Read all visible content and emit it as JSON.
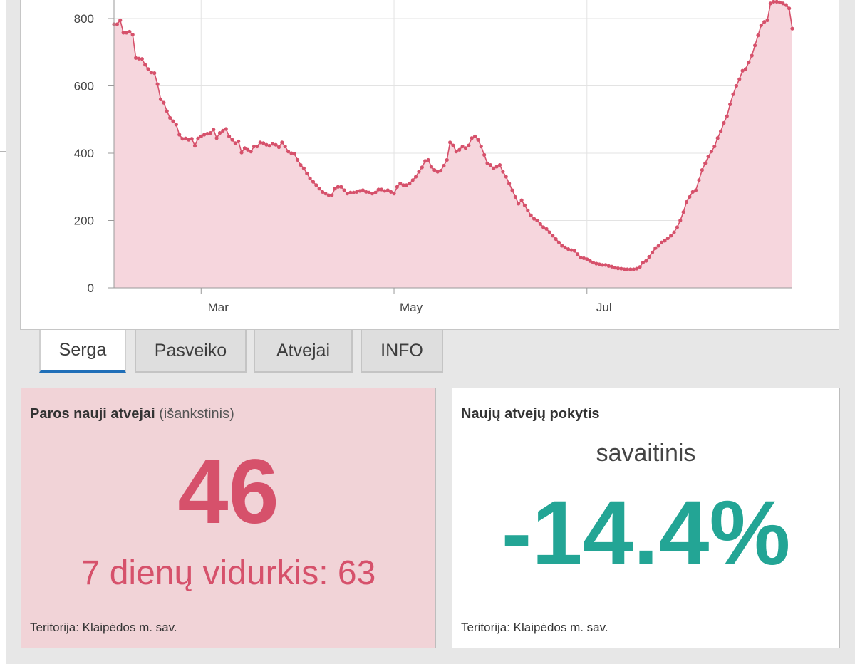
{
  "colors": {
    "chart_line": "#d6516b",
    "chart_fill": "#f6d6dd",
    "left_card_bg": "#f1d3d7",
    "left_card_text": "#d6516b",
    "right_card_value": "#23a595",
    "active_tab_underline": "#1f6fb8"
  },
  "chart_data": {
    "type": "area",
    "x_tick_labels": [
      "Mar",
      "May",
      "Jul"
    ],
    "y_ticks": [
      0,
      200,
      400,
      600,
      800
    ],
    "ylim": [
      0,
      850
    ],
    "grid": true,
    "legend": "none",
    "series": [
      {
        "values": [
          783,
          783,
          795,
          758,
          758,
          761,
          752,
          683,
          681,
          680,
          663,
          650,
          640,
          638,
          605,
          560,
          550,
          525,
          505,
          495,
          485,
          455,
          443,
          444,
          440,
          443,
          422,
          444,
          450,
          455,
          458,
          460,
          470,
          445,
          460,
          467,
          472,
          450,
          440,
          430,
          435,
          402,
          415,
          410,
          405,
          420,
          420,
          432,
          430,
          425,
          422,
          428,
          425,
          418,
          432,
          420,
          405,
          400,
          398,
          380,
          365,
          355,
          340,
          325,
          315,
          305,
          295,
          285,
          280,
          275,
          275,
          295,
          300,
          300,
          290,
          280,
          283,
          283,
          285,
          288,
          290,
          285,
          283,
          280,
          283,
          292,
          292,
          288,
          290,
          285,
          280,
          300,
          310,
          305,
          305,
          310,
          320,
          330,
          345,
          358,
          377,
          380,
          360,
          350,
          345,
          348,
          363,
          380,
          432,
          423,
          405,
          410,
          420,
          415,
          423,
          445,
          450,
          440,
          420,
          395,
          370,
          365,
          355,
          360,
          365,
          345,
          330,
          310,
          290,
          270,
          250,
          260,
          245,
          230,
          215,
          205,
          200,
          190,
          180,
          175,
          165,
          155,
          145,
          135,
          125,
          120,
          115,
          112,
          110,
          100,
          90,
          88,
          85,
          80,
          75,
          72,
          70,
          68,
          68,
          65,
          63,
          60,
          58,
          57,
          55,
          55,
          55,
          55,
          57,
          62,
          75,
          80,
          92,
          105,
          118,
          125,
          135,
          140,
          147,
          155,
          165,
          180,
          200,
          225,
          255,
          270,
          285,
          290,
          320,
          350,
          370,
          390,
          405,
          420,
          445,
          465,
          490,
          510,
          545,
          575,
          600,
          620,
          645,
          650,
          670,
          690,
          720,
          750,
          780,
          790,
          795,
          845,
          850,
          850,
          848,
          845,
          840,
          830,
          770
        ]
      }
    ]
  },
  "tabs": [
    {
      "label": "Serga",
      "active": true
    },
    {
      "label": "Pasveiko",
      "active": false
    },
    {
      "label": "Atvejai",
      "active": false
    },
    {
      "label": "INFO",
      "active": false
    }
  ],
  "left_card": {
    "title_bold": "Paros nauji atvejai",
    "title_muted": "(išankstinis)",
    "value": "46",
    "average": "7 dienų vidurkis: 63",
    "footer": "Teritorija: Klaipėdos m. sav."
  },
  "right_card": {
    "title": "Naujų atvejų pokytis",
    "subtitle": "savaitinis",
    "value": "-14.4%",
    "footer": "Teritorija: Klaipėdos m. sav."
  }
}
